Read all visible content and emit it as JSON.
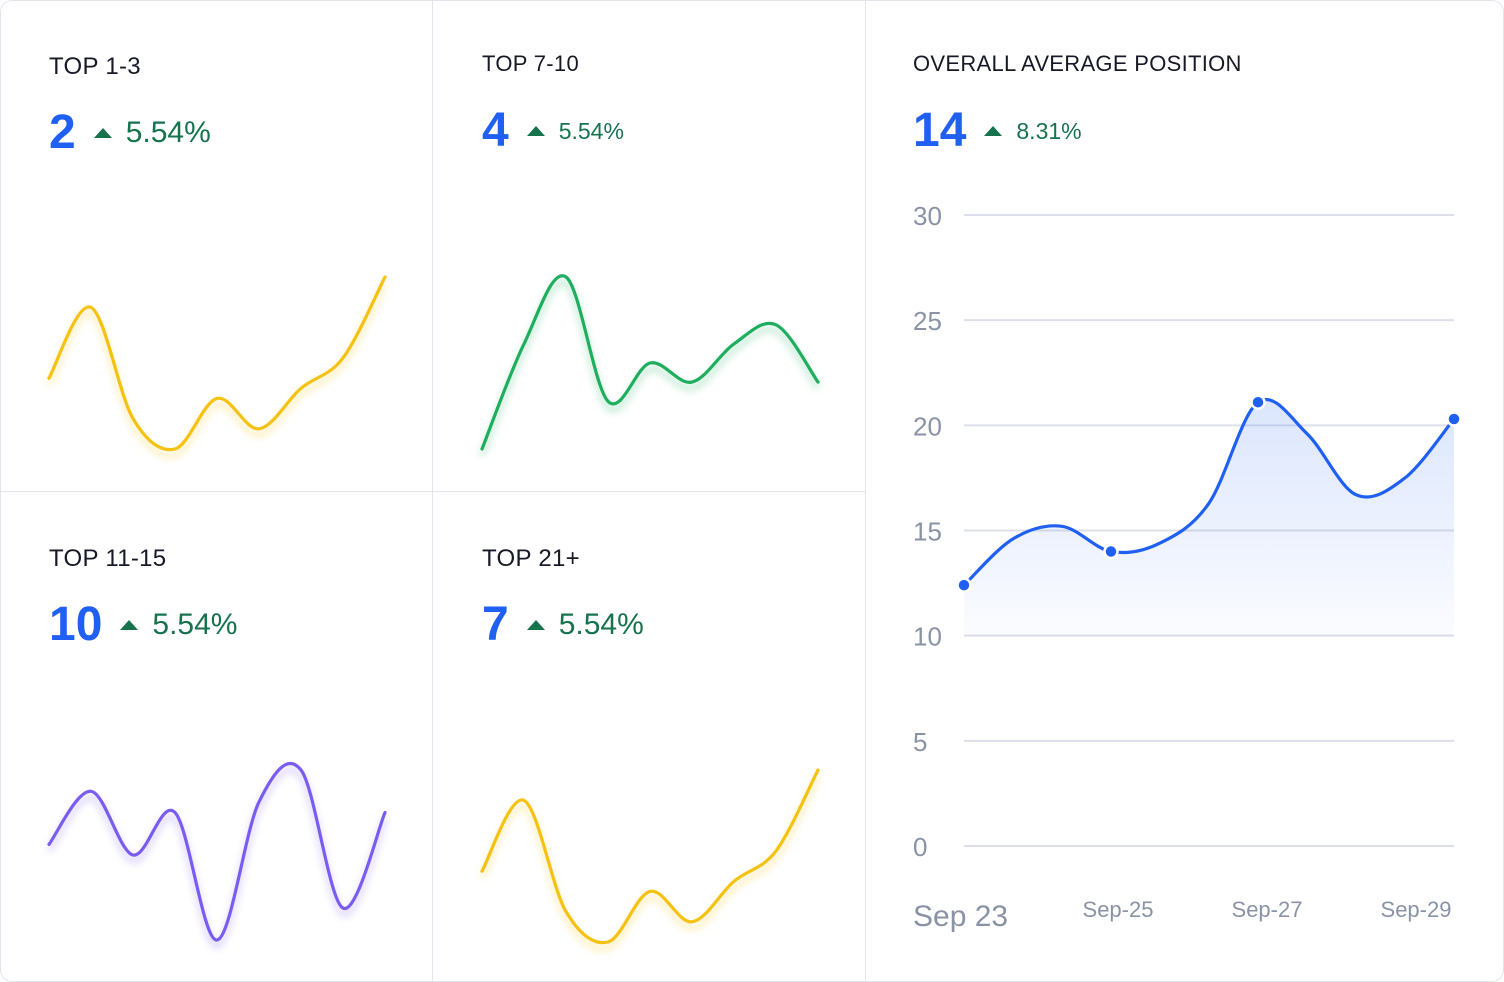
{
  "colors": {
    "accent": "#1f5ff2",
    "positive": "#17734e",
    "yellow": "#f5c211",
    "green": "#1fae5e",
    "purple": "#7b5cf0"
  },
  "panels": [
    {
      "title": "TOP 1-3",
      "value": "2",
      "change": "5.54%",
      "trend": "up-icon"
    },
    {
      "title": "TOP 7-10",
      "value": "4",
      "change": "5.54%",
      "trend": "up-icon"
    },
    {
      "title": "TOP 11-15",
      "value": "10",
      "change": "5.54%",
      "trend": "up-icon"
    },
    {
      "title": "TOP 21+",
      "value": "7",
      "change": "5.54%",
      "trend": "up-icon"
    }
  ],
  "overall": {
    "title": "OVERALL AVERAGE POSITION",
    "value": "14",
    "change": "8.31%",
    "trend": "up-icon"
  },
  "chart_data": [
    {
      "type": "line",
      "series": [
        {
          "values": [
            10,
            17,
            6,
            3,
            8,
            5,
            9,
            12,
            20
          ]
        }
      ]
    },
    {
      "type": "line",
      "series": [
        {
          "values": [
            3,
            14,
            21,
            8,
            12,
            10,
            14,
            16,
            10
          ]
        }
      ]
    },
    {
      "type": "line",
      "series": [
        {
          "values": [
            12,
            17,
            11,
            15,
            3,
            16,
            19,
            6,
            15
          ]
        }
      ]
    },
    {
      "type": "line",
      "series": [
        {
          "values": [
            10,
            17,
            6,
            3,
            8,
            5,
            9,
            12,
            20
          ]
        }
      ]
    },
    {
      "type": "area",
      "title": "OVERALL AVERAGE POSITION",
      "xlabel": "",
      "ylabel": "",
      "x_tick_labels": [
        "Sep 23",
        "Sep-25",
        "Sep-27",
        "Sep-29"
      ],
      "y_ticks": [
        0,
        5,
        10,
        15,
        20,
        25,
        30
      ],
      "ylim": [
        0,
        30
      ],
      "grid": true,
      "series": [
        {
          "x": [
            0,
            1,
            2,
            3,
            4,
            5,
            6,
            7,
            8,
            9,
            10
          ],
          "values": [
            12.4,
            14.6,
            15.2,
            14.0,
            14.4,
            16.3,
            21.1,
            19.6,
            16.7,
            17.5,
            20.3
          ],
          "markers": [
            0,
            3,
            6,
            10
          ]
        }
      ]
    }
  ]
}
